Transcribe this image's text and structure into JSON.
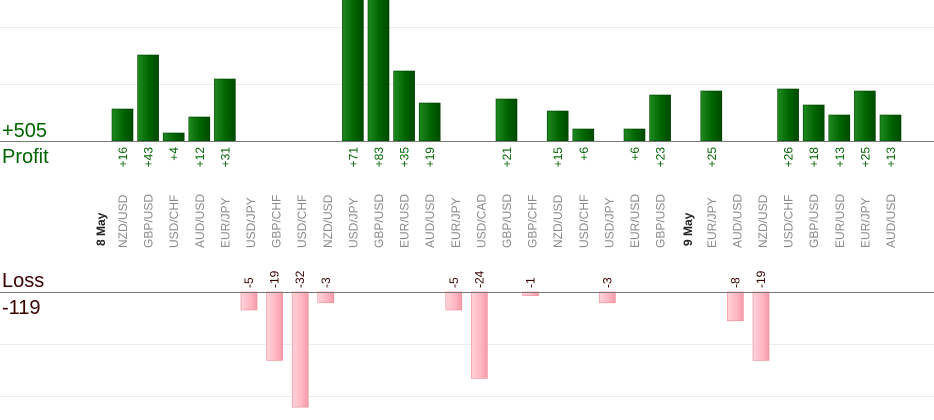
{
  "chart_data": {
    "type": "bar",
    "profit_label": "Profit",
    "profit_total": "+505",
    "loss_label": "Loss",
    "loss_total": "-119",
    "date_labels": [
      {
        "text": "8 May",
        "before_index": 0
      },
      {
        "text": "9 May",
        "before_index": 22
      }
    ],
    "categories": [
      "NZD/USD",
      "GBP/USD",
      "USD/CHF",
      "AUD/USD",
      "EUR/JPY",
      "USD/JPY",
      "GBP/CHF",
      "USD/CHF",
      "NZD/USD",
      "USD/JPY",
      "GBP/USD",
      "EUR/USD",
      "AUD/USD",
      "EUR/JPY",
      "USD/CAD",
      "GBP/USD",
      "GBP/CHF",
      "NZD/USD",
      "USD/CHF",
      "USD/JPY",
      "EUR/USD",
      "GBP/USD",
      "EUR/JPY",
      "AUD/USD",
      "NZD/USD",
      "USD/CHF",
      "GBP/USD",
      "EUR/USD",
      "EUR/JPY",
      "AUD/USD"
    ],
    "series": [
      {
        "name": "Profit",
        "color": "#006400",
        "values": [
          16,
          43,
          4,
          12,
          31,
          null,
          null,
          null,
          null,
          71,
          83,
          35,
          19,
          null,
          null,
          21,
          null,
          15,
          6,
          null,
          6,
          23,
          25,
          null,
          null,
          26,
          18,
          13,
          25,
          13
        ],
        "labels": [
          "+16",
          "+43",
          "+4",
          "+12",
          "+31",
          null,
          null,
          null,
          null,
          "+71",
          "+83",
          "+35",
          "+19",
          null,
          null,
          "+21",
          null,
          "+15",
          "+6",
          null,
          "+6",
          "+23",
          "+25",
          null,
          null,
          "+26",
          "+18",
          "+13",
          "+25",
          "+13"
        ]
      },
      {
        "name": "Loss",
        "color": "#ffb6c1",
        "values": [
          null,
          null,
          null,
          null,
          null,
          -5,
          -19,
          -32,
          -3,
          null,
          null,
          null,
          null,
          -5,
          -24,
          null,
          -1,
          null,
          null,
          -3,
          null,
          null,
          null,
          -8,
          -19,
          null,
          null,
          null,
          null,
          null
        ],
        "labels": [
          null,
          null,
          null,
          null,
          null,
          "-5",
          "-19",
          "-32",
          "-3",
          null,
          null,
          null,
          null,
          "-5",
          "-24",
          null,
          "-1",
          null,
          null,
          "-3",
          null,
          null,
          null,
          "-8",
          "-19",
          null,
          null,
          null,
          null,
          null
        ]
      }
    ],
    "grid": true,
    "colors": {
      "profit": "#006400",
      "loss": "#ffb6c1",
      "loss_text": "#3a0000",
      "profit_text": "#006400"
    }
  }
}
